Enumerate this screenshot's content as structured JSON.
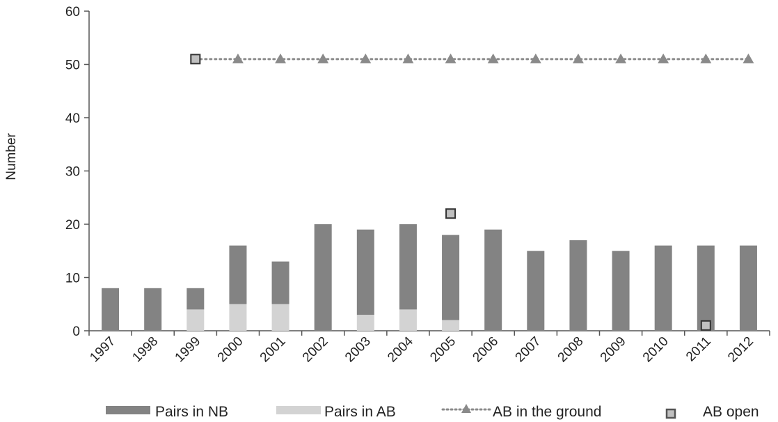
{
  "chart_data": {
    "type": "bar",
    "ylabel": "Number",
    "ylim": [
      0,
      60
    ],
    "yticks": [
      0,
      10,
      20,
      30,
      40,
      50,
      60
    ],
    "categories": [
      "1997",
      "1998",
      "1999",
      "2000",
      "2001",
      "2002",
      "2003",
      "2004",
      "2005",
      "2006",
      "2007",
      "2008",
      "2009",
      "2010",
      "2011",
      "2012"
    ],
    "series": [
      {
        "name": "Pairs in AB",
        "kind": "stacked-bar",
        "color": "#d3d3d3",
        "values": [
          0,
          0,
          4,
          5,
          5,
          0,
          3,
          4,
          2,
          0,
          0,
          0,
          0,
          0,
          0,
          0
        ]
      },
      {
        "name": "Pairs in NB",
        "kind": "stacked-bar",
        "color": "#838383",
        "values": [
          8,
          8,
          4,
          11,
          8,
          20,
          16,
          16,
          16,
          19,
          15,
          17,
          15,
          16,
          16,
          16
        ]
      },
      {
        "name": "AB in the ground",
        "kind": "dotted-line-triangles",
        "color": "#8a8a8a",
        "values": [
          null,
          null,
          51,
          51,
          51,
          51,
          51,
          51,
          51,
          51,
          51,
          51,
          51,
          51,
          51,
          51
        ]
      },
      {
        "name": "AB open",
        "kind": "square-markers",
        "color": "#c0c0c0",
        "points": [
          {
            "x": "1999",
            "y": 51
          },
          {
            "x": "2005",
            "y": 22
          },
          {
            "x": "2011",
            "y": 1
          }
        ]
      }
    ],
    "legend": {
      "position": "bottom"
    },
    "grid": false
  }
}
